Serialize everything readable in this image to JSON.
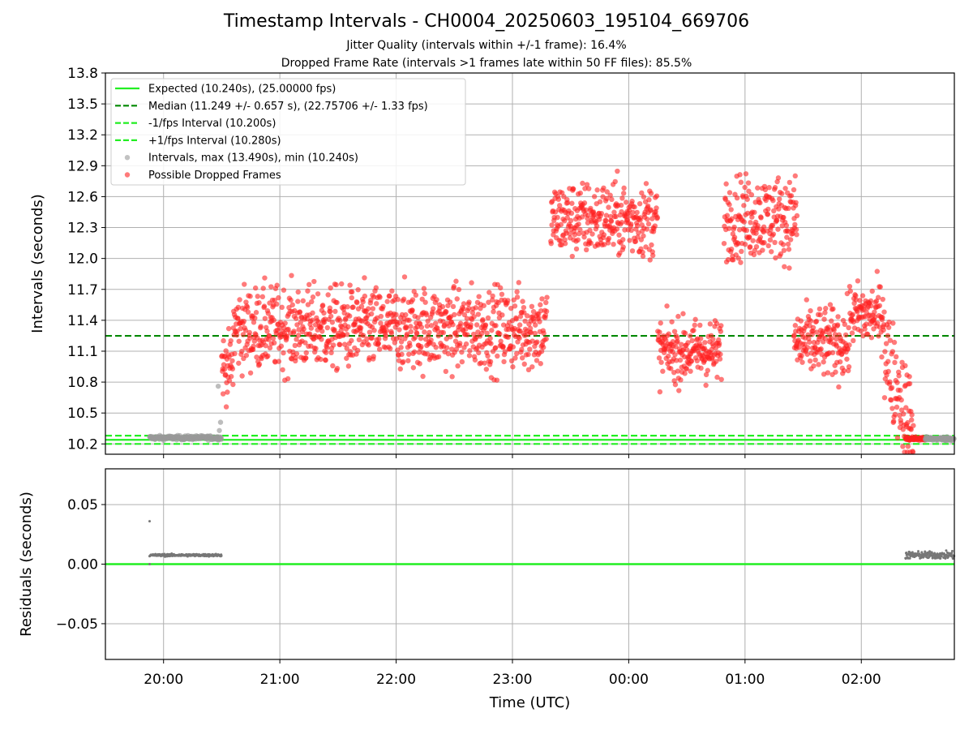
{
  "chart_data": {
    "title": "Timestamp Intervals - CH0004_20250603_195104_669706",
    "subtitle_lines": [
      "Jitter Quality (intervals within +/-1 frame): 16.4%",
      "Dropped Frame Rate (intervals >1 frames late within 50 FF files): 85.5%"
    ],
    "xlabel": "Time (UTC)",
    "x_tick_labels": [
      "20:00",
      "21:00",
      "22:00",
      "23:00",
      "00:00",
      "01:00",
      "02:00"
    ],
    "x_range_hours": [
      19.5,
      26.8
    ],
    "panels": [
      {
        "type": "scatter",
        "ylabel": "Intervals (seconds)",
        "ylim": [
          10.1,
          13.8
        ],
        "y_ticks": [
          10.2,
          10.5,
          10.8,
          11.1,
          11.4,
          11.7,
          12.0,
          12.3,
          12.6,
          12.9,
          13.2,
          13.5,
          13.8
        ],
        "y_tick_labels": [
          "10.2",
          "10.5",
          "10.8",
          "11.1",
          "11.4",
          "11.7",
          "12.0",
          "12.3",
          "12.6",
          "12.9",
          "13.2",
          "13.5",
          "13.8"
        ],
        "grid": true,
        "legend_position": "upper-left",
        "lines": [
          {
            "name": "Expected (10.240s), (25.00000 fps)",
            "y": 10.24,
            "color": "#22ee22",
            "style": "solid"
          },
          {
            "name": "Median (11.249 +/- 0.657 s), (22.75706 +/- 1.33 fps)",
            "y": 11.249,
            "color": "#008800",
            "style": "dashed"
          },
          {
            "name": "-1/fps Interval (10.200s)",
            "y": 10.2,
            "color": "#22ee22",
            "style": "dashed"
          },
          {
            "name": "+1/fps Interval (10.280s)",
            "y": 10.28,
            "color": "#22ee22",
            "style": "dashed"
          }
        ],
        "series": [
          {
            "name": "Intervals, max (13.490s), min (10.240s)",
            "color": "#999999",
            "kind": "scatter"
          },
          {
            "name": "Possible Dropped Frames",
            "color": "#ff2222",
            "kind": "scatter"
          }
        ],
        "data_segments_hours": [
          {
            "series": 0,
            "x": [
              19.88,
              20.5
            ],
            "level": 10.26,
            "spread": 0.01
          },
          {
            "series": 0,
            "x": [
              20.45,
              20.52
            ],
            "points": [
              [
                20.48,
                10.33
              ],
              [
                20.49,
                10.41
              ],
              [
                20.47,
                10.76
              ]
            ]
          },
          {
            "series": 1,
            "x": [
              20.5,
              20.6
            ],
            "level": 10.95,
            "spread": 0.15
          },
          {
            "series": 1,
            "x": [
              20.6,
              23.3
            ],
            "level": 11.32,
            "spread": 0.2
          },
          {
            "series": 1,
            "x": [
              23.33,
              24.25
            ],
            "level": 12.38,
            "spread": 0.18
          },
          {
            "series": 1,
            "x": [
              24.25,
              24.8
            ],
            "level": 11.1,
            "spread": 0.15
          },
          {
            "series": 1,
            "x": [
              24.82,
              25.45
            ],
            "level": 12.4,
            "spread": 0.2
          },
          {
            "series": 1,
            "x": [
              25.42,
              25.9
            ],
            "level": 11.18,
            "spread": 0.17
          },
          {
            "series": 1,
            "x": [
              25.9,
              26.2
            ],
            "level": 11.45,
            "spread": 0.15
          },
          {
            "series": 1,
            "x": [
              26.2,
              26.45
            ],
            "level": 10.7,
            "spread": 0.25
          },
          {
            "series": 1,
            "x": [
              26.38,
              26.55
            ],
            "level": 10.25,
            "spread": 0.01
          },
          {
            "series": 0,
            "x": [
              26.55,
              26.8
            ],
            "level": 10.25,
            "spread": 0.01
          }
        ]
      },
      {
        "type": "scatter",
        "ylabel": "Residuals (seconds)",
        "ylim": [
          -0.08,
          0.08
        ],
        "y_ticks": [
          -0.05,
          0.0,
          0.05
        ],
        "y_tick_labels": [
          "−0.05",
          "0.00",
          "0.05"
        ],
        "grid": true,
        "lines": [
          {
            "y": 0.0,
            "color": "#22ee22",
            "style": "solid"
          }
        ],
        "series": [
          {
            "name": "residuals",
            "color": "#777777",
            "kind": "scatter"
          }
        ],
        "data_segments_hours": [
          {
            "x": [
              19.88,
              20.5
            ],
            "level": 0.0075,
            "spread": 0.0005
          },
          {
            "x": [
              26.38,
              26.8
            ],
            "level": 0.0075,
            "spread": 0.0015
          }
        ],
        "outliers": [
          [
            19.88,
            0.036
          ],
          [
            19.88,
            0.0
          ]
        ]
      }
    ]
  }
}
